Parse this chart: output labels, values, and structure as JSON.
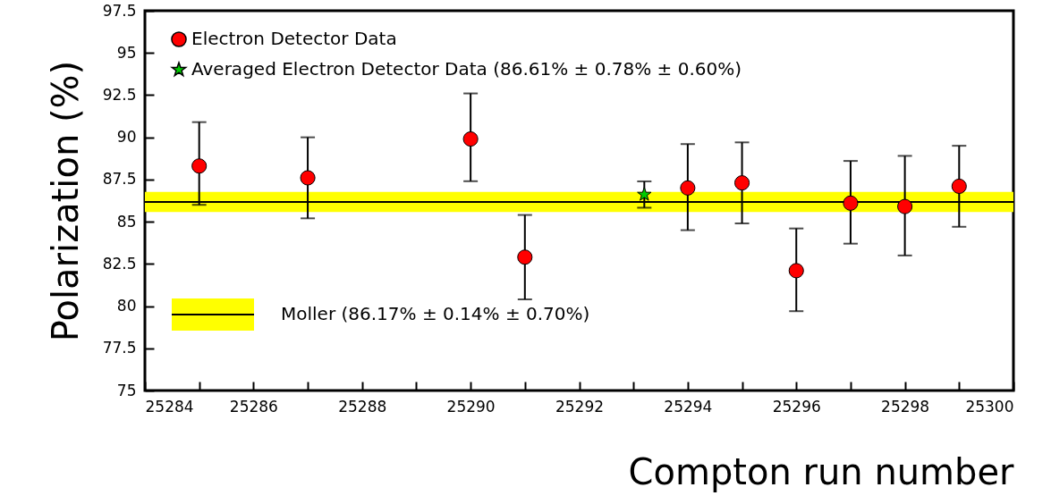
{
  "chart_data": {
    "type": "scatter",
    "xlabel": "Compton run number",
    "ylabel": "Polarization (%)",
    "xlim": [
      25284,
      25300
    ],
    "xticks": [
      25284,
      {
        "value": 25285,
        "label": null
      },
      25286,
      {
        "value": 25287,
        "label": null
      },
      25288,
      {
        "value": 25289,
        "label": null
      },
      25290,
      {
        "value": 25291,
        "label": null
      },
      25292,
      {
        "value": 25293,
        "label": null
      },
      25294,
      {
        "value": 25295,
        "label": null
      },
      25296,
      {
        "value": 25297,
        "label": null
      },
      25298,
      {
        "value": 25299,
        "label": null
      },
      25300
    ],
    "ylim": [
      75,
      97.5
    ],
    "yticks": [
      75,
      77.5,
      80,
      82.5,
      85,
      87.5,
      90,
      92.5,
      95,
      97.5
    ],
    "grid": false,
    "legend": "top left",
    "series": [
      {
        "name": "Electron Detector Data",
        "color": "#ff0000",
        "marker": "circle",
        "x": [
          25285,
          25287,
          25290,
          25291,
          25294,
          25295,
          25296,
          25297,
          25298,
          25299
        ],
        "values": [
          88.3,
          87.6,
          89.9,
          82.9,
          87.0,
          87.3,
          82.1,
          86.1,
          85.9,
          87.1
        ],
        "errors": [
          [
            86.0,
            90.9
          ],
          [
            85.2,
            90.0
          ],
          [
            87.4,
            92.6
          ],
          [
            80.4,
            85.4
          ],
          [
            84.5,
            89.6
          ],
          [
            84.9,
            89.7
          ],
          [
            79.7,
            84.6
          ],
          [
            83.7,
            88.6
          ],
          [
            83.0,
            88.9
          ],
          [
            84.7,
            89.5
          ]
        ]
      },
      {
        "name": "Averaged Electron Detector Data (86.61% ± 0.78% ± 0.60%)",
        "color": "#00cc00",
        "marker": "star",
        "x": [
          25293.2
        ],
        "values": [
          86.61
        ],
        "errors": [
          0.78
        ]
      }
    ],
    "bands": [
      {
        "axis": "y",
        "from": 85.57,
        "to": 86.77,
        "color": "#ffff00",
        "label": "Moller (86.17% ± 0.14% ± 0.70%)"
      }
    ],
    "ref_lines": [
      {
        "axis": "y",
        "value": 86.17,
        "color": "#000000",
        "line_style": "solid"
      }
    ]
  }
}
